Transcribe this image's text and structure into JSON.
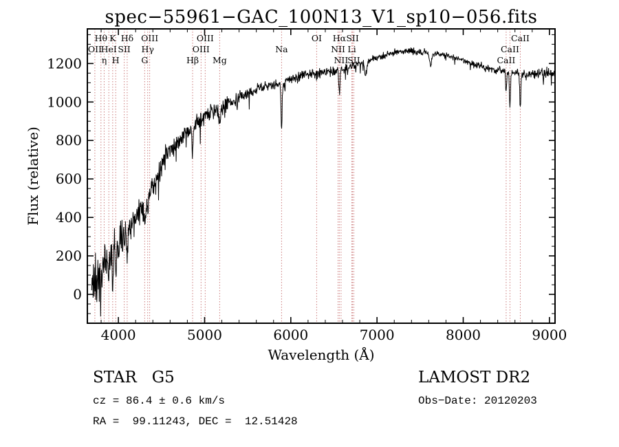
{
  "page": {
    "background": "#ffffff"
  },
  "header": {
    "title": "spec−55961−GAC_100N13_V1_sp10−056.fits"
  },
  "footer": {
    "classification": "STAR   G5",
    "survey": "LAMOST DR2",
    "cz": "cz = 86.4 ± 0.6 km/s",
    "obs_date": "Obs−Date: 20120203",
    "coordinates": "RA =  99.11243, DEC =  12.51428"
  },
  "chart_data": {
    "type": "line",
    "title": "spec−55961−GAC_100N13_V1_sp10−056.fits",
    "xlabel": "Wavelength (Å)",
    "ylabel": "Flux (relative)",
    "xlim": [
      3640,
      9065
    ],
    "ylim": [
      -150,
      1380
    ],
    "xticks": [
      4000,
      5000,
      6000,
      7000,
      8000,
      9000
    ],
    "yticks": [
      0,
      200,
      400,
      600,
      800,
      1000,
      1200
    ],
    "x_minor_step": 200,
    "y_minor_step": 50,
    "grid": false,
    "legend": false,
    "trace_color": "#000000",
    "feature_marker_color": "#cc7a7a",
    "continuum": {
      "x": [
        3690,
        3750,
        3800,
        3850,
        3900,
        3950,
        4000,
        4100,
        4200,
        4300,
        4400,
        4500,
        4600,
        4700,
        4800,
        4900,
        5000,
        5100,
        5200,
        5300,
        5400,
        5500,
        5600,
        5700,
        5800,
        5900,
        6000,
        6200,
        6400,
        6600,
        6800,
        7000,
        7200,
        7400,
        7600,
        7800,
        8000,
        8200,
        8400,
        8600,
        8800,
        9000,
        9060
      ],
      "flux": [
        30,
        90,
        130,
        170,
        200,
        230,
        255,
        320,
        395,
        470,
        560,
        670,
        745,
        800,
        850,
        895,
        930,
        955,
        975,
        1000,
        1020,
        1045,
        1065,
        1080,
        1090,
        1100,
        1120,
        1145,
        1155,
        1165,
        1200,
        1230,
        1255,
        1265,
        1255,
        1245,
        1215,
        1185,
        1165,
        1150,
        1145,
        1150,
        1140
      ]
    },
    "noise_sigma": {
      "x": [
        3690,
        3800,
        3900,
        4000,
        4200,
        4500,
        5000,
        5500,
        6000,
        6500,
        7000,
        8000,
        8600,
        9060
      ],
      "sigma": [
        150,
        130,
        110,
        95,
        75,
        55,
        38,
        30,
        25,
        20,
        16,
        15,
        20,
        28
      ]
    },
    "absorption_features": [
      {
        "wavelength": 3934,
        "depth": 160,
        "width": 8
      },
      {
        "wavelength": 3969,
        "depth": 150,
        "width": 8
      },
      {
        "wavelength": 4102,
        "depth": 130,
        "width": 8
      },
      {
        "wavelength": 4305,
        "depth": 90,
        "width": 15
      },
      {
        "wavelength": 4340,
        "depth": 110,
        "width": 8
      },
      {
        "wavelength": 4861,
        "depth": 140,
        "width": 8
      },
      {
        "wavelength": 5175,
        "depth": 80,
        "width": 15
      },
      {
        "wavelength": 5893,
        "depth": 240,
        "width": 9
      },
      {
        "wavelength": 6563,
        "depth": 130,
        "width": 8
      },
      {
        "wavelength": 6870,
        "depth": 70,
        "width": 18
      },
      {
        "wavelength": 7620,
        "depth": 60,
        "width": 20
      },
      {
        "wavelength": 8498,
        "depth": 110,
        "width": 8
      },
      {
        "wavelength": 8542,
        "depth": 170,
        "width": 9
      },
      {
        "wavelength": 8662,
        "depth": 180,
        "width": 9
      }
    ],
    "spectral_lines": [
      {
        "wavelength": 3798,
        "label": "Hθ",
        "row": 1
      },
      {
        "wavelength": 3934,
        "label": "K",
        "row": 1
      },
      {
        "wavelength": 4102,
        "label": "Hδ",
        "row": 1
      },
      {
        "wavelength": 4363,
        "label": "OIII",
        "row": 1
      },
      {
        "wavelength": 5007,
        "label": "OIII",
        "row": 1
      },
      {
        "wavelength": 6300,
        "label": "OI",
        "row": 1
      },
      {
        "wavelength": 6563,
        "label": "Hα",
        "row": 1
      },
      {
        "wavelength": 6716,
        "label": "SII",
        "row": 1
      },
      {
        "wavelength": 8662,
        "label": "CaII",
        "row": 1
      },
      {
        "wavelength": 3727,
        "label": "OII",
        "row": 2
      },
      {
        "wavelength": 3889,
        "label": "HeI",
        "row": 2
      },
      {
        "wavelength": 4068,
        "label": "SII",
        "row": 2
      },
      {
        "wavelength": 4340,
        "label": "Hγ",
        "row": 2
      },
      {
        "wavelength": 4959,
        "label": "OIII",
        "row": 2
      },
      {
        "wavelength": 5893,
        "label": "Na",
        "row": 2
      },
      {
        "wavelength": 6548,
        "label": "NII",
        "row": 2
      },
      {
        "wavelength": 6708,
        "label": "Li",
        "row": 2
      },
      {
        "wavelength": 8542,
        "label": "CaII",
        "row": 2
      },
      {
        "wavelength": 3835,
        "label": "η",
        "row": 3
      },
      {
        "wavelength": 3969,
        "label": "H",
        "row": 3
      },
      {
        "wavelength": 4305,
        "label": "G",
        "row": 3
      },
      {
        "wavelength": 4861,
        "label": "Hβ",
        "row": 3
      },
      {
        "wavelength": 5175,
        "label": "Mg",
        "row": 3
      },
      {
        "wavelength": 6583,
        "label": "NII",
        "row": 3
      },
      {
        "wavelength": 6731,
        "label": "SII",
        "row": 3
      },
      {
        "wavelength": 8498,
        "label": "CaII",
        "row": 3
      }
    ]
  }
}
